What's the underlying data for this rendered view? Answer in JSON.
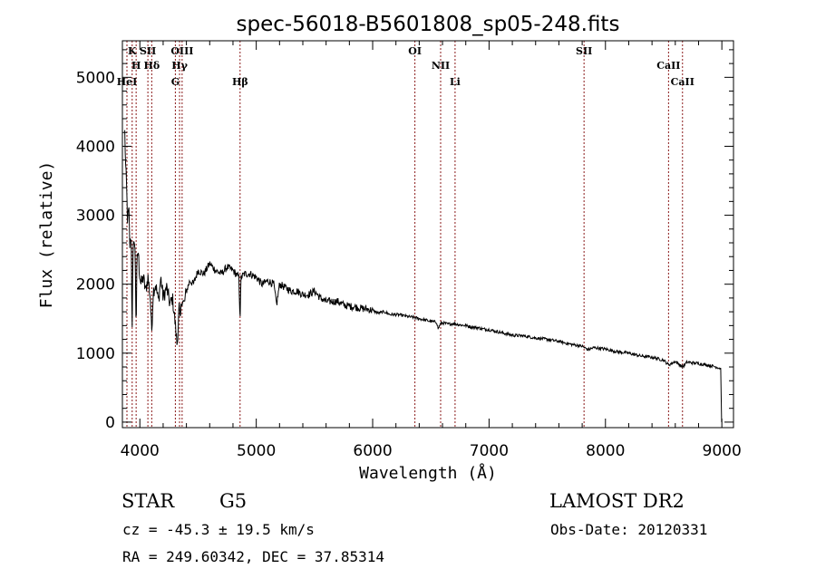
{
  "chart_data": {
    "type": "line",
    "title": "spec-56018-B5601808_sp05-248.fits",
    "xlabel": "Wavelength (Å)",
    "ylabel": "Flux (relative)",
    "xlim": [
      3850,
      9100
    ],
    "ylim": [
      -80,
      5530
    ],
    "x_ticks": [
      4000,
      5000,
      6000,
      7000,
      8000,
      9000
    ],
    "y_ticks": [
      0,
      1000,
      2000,
      3000,
      4000,
      5000
    ],
    "grid": false,
    "legend": "none",
    "line_color": "#000000",
    "marker_color": "#8b1a1a",
    "series": [
      {
        "x": [
          3870,
          3878,
          3886,
          3895,
          3905,
          3915,
          3925,
          3933,
          3940,
          3950,
          3960,
          3968,
          3975,
          3985,
          3995,
          4010,
          4030,
          4050,
          4070,
          4090,
          4101,
          4115,
          4135,
          4160,
          4180,
          4200,
          4230,
          4260,
          4280,
          4300,
          4310,
          4320,
          4335,
          4340,
          4345,
          4360,
          4380,
          4400,
          4430,
          4460,
          4500,
          4550,
          4600,
          4650,
          4700,
          4750,
          4800,
          4850,
          4861,
          4870,
          4900,
          4950,
          5000,
          5050,
          5100,
          5150,
          5175,
          5200,
          5250,
          5300,
          5350,
          5400,
          5450,
          5500,
          5550,
          5600,
          5650,
          5700,
          5750,
          5800,
          5850,
          5900,
          5950,
          6000,
          6050,
          6100,
          6150,
          6200,
          6250,
          6300,
          6350,
          6400,
          6450,
          6500,
          6550,
          6563,
          6580,
          6600,
          6650,
          6700,
          6750,
          6800,
          6850,
          6900,
          6950,
          7000,
          7100,
          7200,
          7300,
          7400,
          7500,
          7600,
          7700,
          7800,
          7850,
          7900,
          8000,
          8100,
          8200,
          8300,
          8400,
          8498,
          8542,
          8600,
          8662,
          8700,
          8800,
          8900,
          8950,
          8990,
          8998
        ],
        "y": [
          4200,
          3700,
          3400,
          2900,
          3100,
          2500,
          2800,
          1300,
          2300,
          2700,
          2400,
          1300,
          2300,
          2500,
          2200,
          2000,
          2100,
          1900,
          2100,
          1800,
          1300,
          1900,
          2000,
          1750,
          2100,
          1800,
          1950,
          1700,
          1800,
          1500,
          1300,
          1100,
          1600,
          1700,
          1400,
          1800,
          1700,
          1900,
          2050,
          2000,
          2200,
          2150,
          2300,
          2200,
          2150,
          2250,
          2200,
          2100,
          1500,
          2100,
          2150,
          2150,
          2100,
          2000,
          2050,
          2000,
          1700,
          2000,
          1950,
          1900,
          1900,
          1850,
          1850,
          1900,
          1800,
          1750,
          1750,
          1750,
          1700,
          1680,
          1670,
          1650,
          1640,
          1620,
          1580,
          1600,
          1560,
          1560,
          1550,
          1530,
          1520,
          1500,
          1480,
          1460,
          1450,
          1350,
          1420,
          1440,
          1420,
          1430,
          1410,
          1400,
          1380,
          1370,
          1350,
          1340,
          1300,
          1260,
          1250,
          1220,
          1200,
          1170,
          1130,
          1100,
          1050,
          1080,
          1060,
          1020,
          1000,
          960,
          940,
          900,
          830,
          880,
          800,
          870,
          850,
          820,
          800,
          780,
          0
        ]
      }
    ],
    "line_markers": [
      {
        "label": "K",
        "x": 3934
      },
      {
        "label": "H",
        "x": 3968
      },
      {
        "label": "HeI",
        "x": 3889
      },
      {
        "label": "SII",
        "x": 4069
      },
      {
        "label": "Hδ",
        "x": 4102
      },
      {
        "label": "G",
        "x": 4305
      },
      {
        "label": "OIII",
        "x": 4363
      },
      {
        "label": "Hγ",
        "x": 4341
      },
      {
        "label": "Hβ",
        "x": 4861
      },
      {
        "label": "OI",
        "x": 6363
      },
      {
        "label": "NII",
        "x": 6584
      },
      {
        "label": "Li",
        "x": 6708
      },
      {
        "label": "SII",
        "x": 7816
      },
      {
        "label": "CaII",
        "x": 8542
      },
      {
        "label": "CaII",
        "x": 8662
      }
    ]
  },
  "info": {
    "object_type": "STAR",
    "subclass": "G5",
    "survey": "LAMOST DR2",
    "cz": "cz = -45.3 ± 19.5 km/s",
    "coords": "RA = 249.60342, DEC =  37.85314",
    "obs_date": "Obs-Date: 20120331"
  }
}
